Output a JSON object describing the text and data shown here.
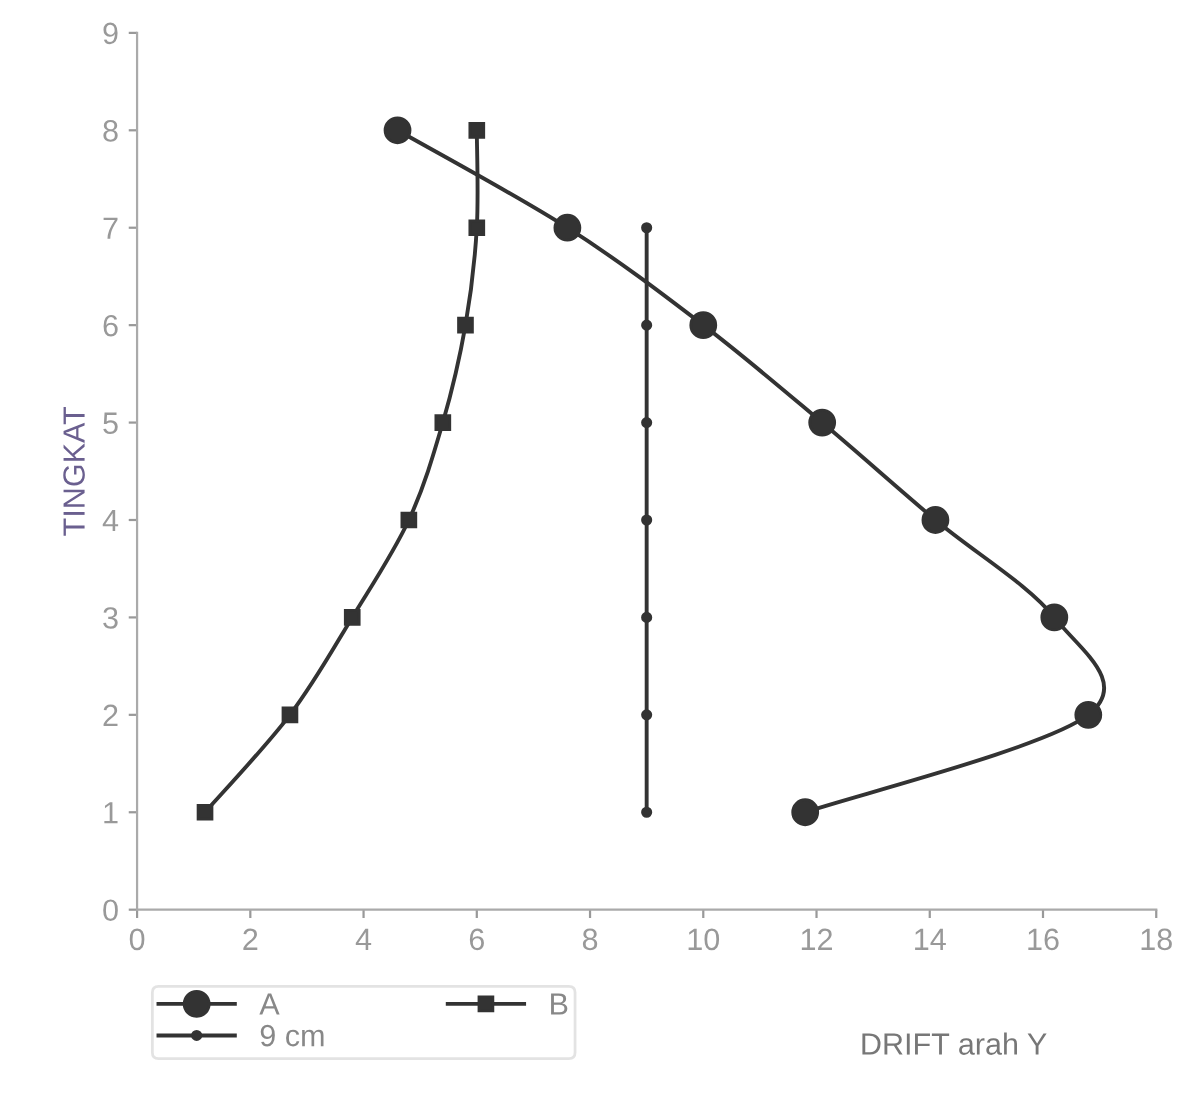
{
  "chart_data": {
    "type": "line",
    "xlabel": "DRIFT arah Y",
    "ylabel": "TINGKAT",
    "xlim": [
      0,
      18
    ],
    "ylim": [
      0,
      9
    ],
    "xticks": [
      0,
      2,
      4,
      6,
      8,
      10,
      12,
      14,
      16,
      18
    ],
    "yticks": [
      0,
      1,
      2,
      3,
      4,
      5,
      6,
      7,
      8,
      9
    ],
    "grid": false,
    "legend": "bottom left",
    "series": [
      {
        "name": "A",
        "color": "#333333",
        "marker": "circle",
        "x": [
          11.8,
          16.8,
          16.2,
          14.1,
          12.1,
          10.0,
          7.6,
          4.6
        ],
        "values": [
          1,
          2,
          3,
          4,
          5,
          6,
          7,
          8
        ]
      },
      {
        "name": "B",
        "color": "#333333",
        "marker": "square",
        "x": [
          1.2,
          2.7,
          3.8,
          4.8,
          5.4,
          5.8,
          6.0,
          6.0
        ],
        "values": [
          1,
          2,
          3,
          4,
          5,
          6,
          7,
          8
        ]
      },
      {
        "name": "9 cm",
        "color": "#333333",
        "marker": "circle",
        "x": [
          9,
          9,
          9,
          9,
          9,
          9,
          9
        ],
        "values": [
          1,
          2,
          3,
          4,
          5,
          6,
          7
        ]
      }
    ]
  }
}
